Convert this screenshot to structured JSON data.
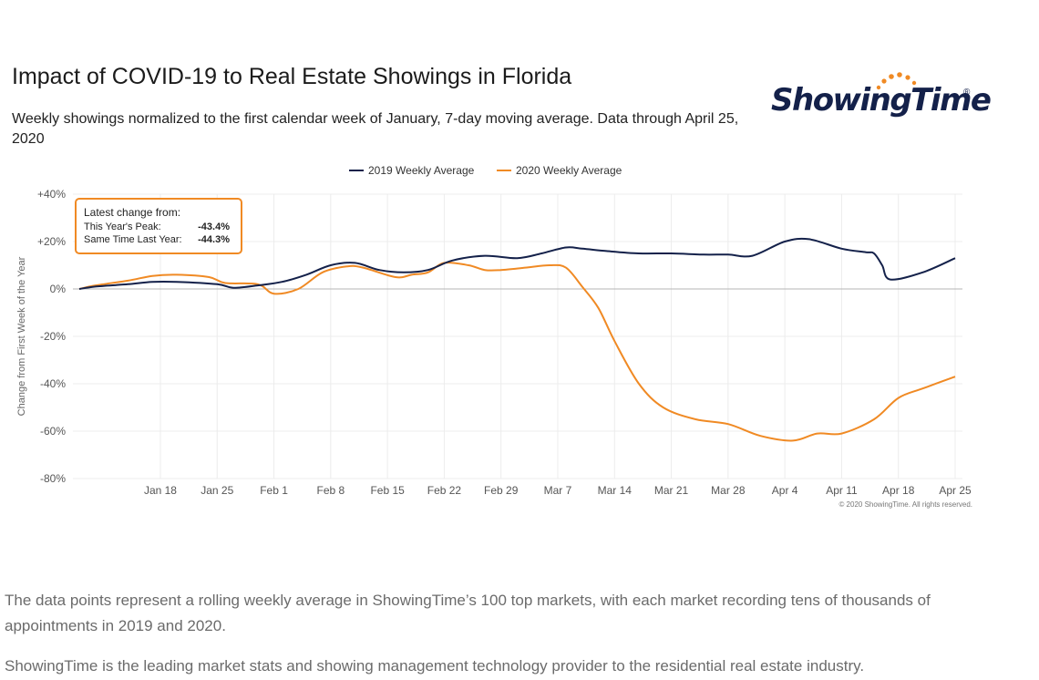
{
  "header": {
    "title": "Impact of COVID-19 to Real Estate Showings in Florida",
    "subtitle": "Weekly showings normalized to the first calendar week of January, 7-day moving average. Data through April 25, 2020"
  },
  "logo": {
    "text": "ShowingTime",
    "reg": "®"
  },
  "callout": {
    "heading": "Latest change from:",
    "rows": [
      {
        "label": "This Year's Peak:",
        "value": "-43.4%"
      },
      {
        "label": "Same Time Last Year:",
        "value": "-44.3%"
      }
    ]
  },
  "copyright": "© 2020 ShowingTime. All rights reserved.",
  "paragraphs": {
    "p1": "The data points represent a rolling weekly average in ShowingTime’s 100 top markets, with each market recording tens of thousands of appointments in 2019 and 2020.",
    "p2": "ShowingTime is the leading market stats and showing management technology provider to the residential real estate industry."
  },
  "colors": {
    "series2019": "#14214a",
    "series2020": "#f08a24",
    "accent": "#f08a24"
  },
  "chart_data": {
    "type": "line",
    "title": "Impact of COVID-19 to Real Estate Showings in Florida",
    "ylabel": "Change from First Week of the Year",
    "xlabel": "",
    "ylim": [
      -80,
      40
    ],
    "yticks": [
      40,
      20,
      0,
      -20,
      -40,
      -60,
      -80
    ],
    "ytick_labels": [
      "+40%",
      "+20%",
      "0%",
      "-20%",
      "-40%",
      "-60%",
      "-80%"
    ],
    "xlim": [
      8,
      116
    ],
    "xtick_days": [
      18,
      25,
      32,
      39,
      46,
      53,
      60,
      67,
      74,
      81,
      88,
      95,
      102,
      109,
      116
    ],
    "xtick_labels": [
      "Jan 18",
      "Jan 25",
      "Feb 1",
      "Feb 8",
      "Feb 15",
      "Feb 22",
      "Feb 29",
      "Mar 7",
      "Mar 14",
      "Mar 21",
      "Mar 28",
      "Apr 4",
      "Apr 11",
      "Apr 18",
      "Apr 25"
    ],
    "legend": "top-center",
    "series": [
      {
        "name": "2019 Weekly Average",
        "x": [
          8,
          10,
          14,
          17,
          20,
          25,
          27,
          30,
          33,
          36,
          39,
          42,
          45,
          48,
          51,
          54,
          58,
          62,
          65,
          68,
          70,
          73,
          77,
          81,
          85,
          88,
          91,
          95,
          98,
          102,
          105,
          106,
          107,
          108,
          112,
          116
        ],
        "values": [
          0,
          1,
          2,
          3,
          3,
          2,
          0.5,
          1.5,
          3,
          6,
          10,
          11,
          8,
          7,
          8,
          12,
          14,
          13,
          15,
          17.5,
          17,
          16,
          15,
          15,
          14.5,
          14.5,
          14,
          20,
          21,
          17,
          15.5,
          15,
          10,
          4,
          7,
          13
        ]
      },
      {
        "name": "2020 Weekly Average",
        "x": [
          8,
          10,
          14,
          17,
          20,
          24,
          26,
          30,
          32,
          35,
          38,
          41,
          43,
          47,
          49,
          51,
          53,
          56,
          58,
          60,
          63,
          66,
          68,
          70,
          72,
          74,
          77,
          80,
          84,
          88,
          92,
          96,
          99,
          102,
          106,
          109,
          112,
          116
        ],
        "values": [
          0,
          1.5,
          3.5,
          5.5,
          6,
          5,
          2.5,
          2,
          -2,
          0,
          7,
          9.5,
          9,
          5,
          6,
          7,
          11,
          10,
          8,
          8,
          9,
          10,
          9,
          1,
          -8,
          -22,
          -40,
          -50,
          -55,
          -57,
          -62,
          -64,
          -61,
          -61,
          -55,
          -46,
          -42,
          -37
        ]
      }
    ]
  }
}
